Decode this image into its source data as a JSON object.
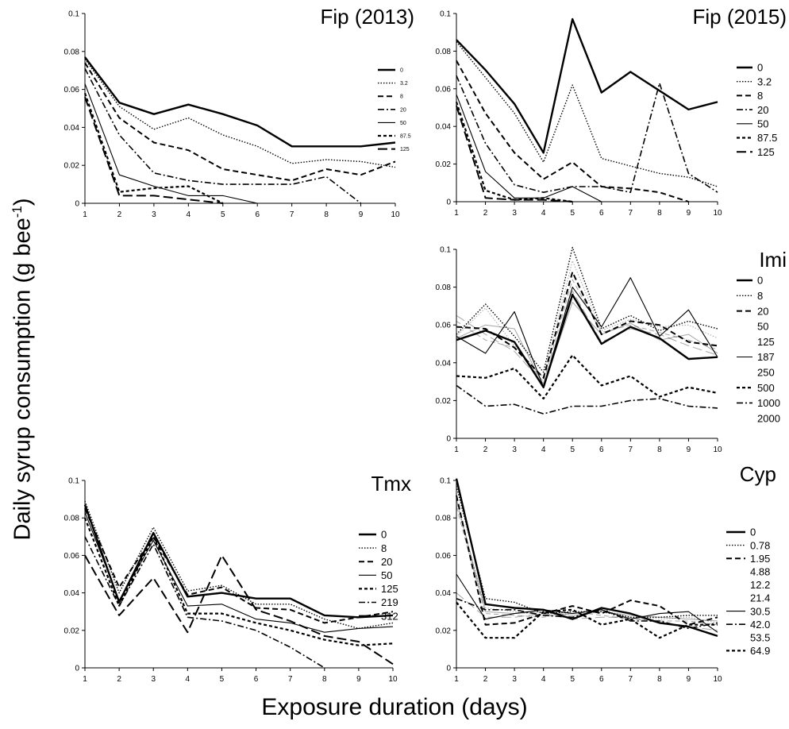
{
  "figure": {
    "ylabel_main": "Daily syrup consumption (g bee",
    "ylabel_sup": "-1",
    "ylabel_tail": ")",
    "xlabel": "Exposure duration (days)"
  },
  "chart_data": [
    {
      "type": "line",
      "title": "Fip (2013)",
      "x": [
        1,
        2,
        3,
        4,
        5,
        6,
        7,
        8,
        9,
        10
      ],
      "ylim": [
        0,
        0.1
      ],
      "yticks": [
        "0",
        "0.02",
        "0.04",
        "0.06",
        "0.08",
        "0.1"
      ],
      "legend_small": true,
      "series": [
        {
          "name": "0",
          "style": "solid-thick",
          "values": [
            0.077,
            0.053,
            0.047,
            0.052,
            0.047,
            0.041,
            0.03,
            0.03,
            0.03,
            0.032
          ]
        },
        {
          "name": "3.2",
          "style": "dotted",
          "values": [
            0.076,
            0.051,
            0.039,
            0.045,
            0.036,
            0.03,
            0.021,
            0.023,
            0.022,
            0.019
          ]
        },
        {
          "name": "8",
          "style": "dashed",
          "values": [
            0.074,
            0.045,
            0.032,
            0.028,
            0.018,
            0.015,
            0.012,
            0.018,
            0.015,
            0.022
          ]
        },
        {
          "name": "20",
          "style": "dashdot",
          "values": [
            0.071,
            0.036,
            0.016,
            0.012,
            0.01,
            0.01,
            0.01,
            0.014,
            0.0,
            null
          ]
        },
        {
          "name": "50",
          "style": "solid-thin",
          "values": [
            0.063,
            0.015,
            0.009,
            0.004,
            0.004,
            0.0,
            null,
            null,
            null,
            null
          ]
        },
        {
          "name": "87.5",
          "style": "dashed-short",
          "values": [
            0.058,
            0.006,
            0.008,
            0.009,
            0.0,
            null,
            null,
            null,
            null,
            null
          ]
        },
        {
          "name": "125",
          "style": "longdash",
          "values": [
            0.056,
            0.004,
            0.004,
            0.002,
            0.0,
            null,
            null,
            null,
            null,
            null
          ]
        }
      ]
    },
    {
      "type": "line",
      "title": "Fip (2015)",
      "x": [
        1,
        2,
        3,
        4,
        5,
        6,
        7,
        8,
        9,
        10
      ],
      "ylim": [
        0,
        0.1
      ],
      "yticks": [
        "0",
        "0.02",
        "0.04",
        "0.06",
        "0.08",
        "0.1"
      ],
      "series": [
        {
          "name": "0",
          "style": "solid-thick",
          "values": [
            0.086,
            0.07,
            0.052,
            0.026,
            0.097,
            0.058,
            0.069,
            0.059,
            0.049,
            0.053
          ]
        },
        {
          "name": "3.2",
          "style": "dotted",
          "values": [
            0.085,
            0.066,
            0.047,
            0.021,
            0.062,
            0.023,
            0.019,
            0.015,
            0.013,
            0.008
          ]
        },
        {
          "name": "8",
          "style": "dashed",
          "values": [
            0.075,
            0.047,
            0.026,
            0.012,
            0.021,
            0.008,
            0.007,
            0.005,
            0.0,
            null
          ]
        },
        {
          "name": "20",
          "style": "dashdot",
          "values": [
            0.067,
            0.031,
            0.009,
            0.005,
            0.008,
            0.008,
            0.005,
            0.063,
            0.015,
            0.005
          ]
        },
        {
          "name": "50",
          "style": "solid-thin",
          "values": [
            0.057,
            0.016,
            0.002,
            0.002,
            0.008,
            0.0,
            0.0,
            null,
            null,
            null
          ]
        },
        {
          "name": "87.5",
          "style": "dashed-short",
          "values": [
            0.053,
            0.006,
            0.001,
            0.002,
            0.0,
            null,
            null,
            null,
            null,
            null
          ]
        },
        {
          "name": "125",
          "style": "longdash",
          "values": [
            0.051,
            0.002,
            0.001,
            0.001,
            0.0,
            null,
            null,
            null,
            null,
            null
          ]
        }
      ]
    },
    {
      "type": "line",
      "title": "Imi",
      "x": [
        1,
        2,
        3,
        4,
        5,
        6,
        7,
        8,
        9,
        10
      ],
      "ylim": [
        0,
        0.1
      ],
      "yticks": [
        "0",
        "0.02",
        "0.04",
        "0.06",
        "0.08",
        "0.1"
      ],
      "legend_unmarked": [
        "50",
        "125",
        "250",
        "2000"
      ],
      "series": [
        {
          "name": "0",
          "style": "solid-thick",
          "values": [
            0.052,
            0.057,
            0.051,
            0.027,
            0.076,
            0.05,
            0.059,
            0.053,
            0.042,
            0.043
          ]
        },
        {
          "name": "8",
          "style": "dotted",
          "values": [
            0.055,
            0.071,
            0.054,
            0.035,
            0.101,
            0.058,
            0.065,
            0.057,
            0.062,
            0.058
          ]
        },
        {
          "name": "20",
          "style": "dashed",
          "values": [
            0.059,
            0.058,
            0.048,
            0.032,
            0.088,
            0.055,
            0.062,
            0.06,
            0.051,
            0.049
          ]
        },
        {
          "name": "50",
          "style": "solid-faint",
          "values": [
            0.053,
            0.06,
            0.058,
            0.028,
            0.072,
            0.055,
            0.061,
            0.052,
            0.055,
            0.045
          ]
        },
        {
          "name": "125",
          "style": "dotted-faint",
          "values": [
            0.054,
            0.069,
            0.049,
            0.032,
            0.094,
            0.057,
            0.063,
            0.059,
            0.06,
            0.053
          ]
        },
        {
          "name": "187",
          "style": "solid-thin",
          "values": [
            0.054,
            0.045,
            0.067,
            0.027,
            0.08,
            0.059,
            0.085,
            0.054,
            0.068,
            0.043
          ]
        },
        {
          "name": "250",
          "style": "dashed-faint",
          "values": [
            0.062,
            0.052,
            0.048,
            0.03,
            0.084,
            0.056,
            0.06,
            0.056,
            0.052,
            0.047
          ]
        },
        {
          "name": "500",
          "style": "dashed-short",
          "values": [
            0.033,
            0.032,
            0.037,
            0.021,
            0.044,
            0.028,
            0.033,
            0.022,
            0.027,
            0.024
          ]
        },
        {
          "name": "1000",
          "style": "dashdot",
          "values": [
            0.028,
            0.017,
            0.018,
            0.013,
            0.017,
            0.017,
            0.02,
            0.021,
            0.017,
            0.016
          ]
        },
        {
          "name": "2000",
          "style": "longdash-faint",
          "values": [
            0.065,
            0.055,
            0.046,
            0.029,
            0.078,
            0.051,
            0.058,
            0.055,
            0.049,
            0.044
          ]
        }
      ]
    },
    {
      "type": "line",
      "title": "Tmx",
      "x": [
        1,
        2,
        3,
        4,
        5,
        6,
        7,
        8,
        9,
        10
      ],
      "ylim": [
        0,
        0.1
      ],
      "yticks": [
        "0",
        "0.02",
        "0.04",
        "0.06",
        "0.08",
        "0.1"
      ],
      "series": [
        {
          "name": "0",
          "style": "solid-thick",
          "values": [
            0.087,
            0.035,
            0.072,
            0.038,
            0.04,
            0.037,
            0.037,
            0.028,
            0.027,
            0.028
          ]
        },
        {
          "name": "8",
          "style": "dotted",
          "values": [
            0.089,
            0.04,
            0.075,
            0.041,
            0.044,
            0.034,
            0.034,
            0.026,
            0.021,
            0.024
          ]
        },
        {
          "name": "20",
          "style": "dashed",
          "values": [
            0.085,
            0.043,
            0.07,
            0.039,
            0.043,
            0.032,
            0.031,
            0.024,
            0.027,
            0.03
          ]
        },
        {
          "name": "50",
          "style": "solid-thin",
          "values": [
            0.083,
            0.036,
            0.068,
            0.033,
            0.034,
            0.026,
            0.024,
            0.019,
            0.021,
            0.022
          ]
        },
        {
          "name": "125",
          "style": "dashed-short",
          "values": [
            0.08,
            0.033,
            0.07,
            0.029,
            0.029,
            0.024,
            0.02,
            0.015,
            0.012,
            0.013
          ]
        },
        {
          "name": "219",
          "style": "dashdot",
          "values": [
            0.07,
            0.033,
            0.066,
            0.027,
            0.025,
            0.02,
            0.011,
            0.0,
            null,
            null
          ]
        },
        {
          "name": "312",
          "style": "longdash",
          "values": [
            0.06,
            0.028,
            0.048,
            0.019,
            0.06,
            0.031,
            0.025,
            0.017,
            0.014,
            0.002
          ]
        }
      ]
    },
    {
      "type": "line",
      "title": "Cyp",
      "x": [
        1,
        2,
        3,
        4,
        5,
        6,
        7,
        8,
        9,
        10
      ],
      "ylim": [
        0,
        0.1
      ],
      "yticks": [
        "0",
        "0.02",
        "0.04",
        "0.06",
        "0.08",
        "0.1"
      ],
      "legend_unmarked": [
        "4.88",
        "12.2",
        "21.4",
        "53.5"
      ],
      "series": [
        {
          "name": "0",
          "style": "solid-thick",
          "values": [
            0.101,
            0.034,
            0.032,
            0.031,
            0.026,
            0.032,
            0.029,
            0.024,
            0.022,
            0.017
          ]
        },
        {
          "name": "0.78",
          "style": "dotted",
          "values": [
            0.097,
            0.037,
            0.035,
            0.029,
            0.03,
            0.03,
            0.027,
            0.027,
            0.028,
            0.028
          ]
        },
        {
          "name": "1.95",
          "style": "dashed",
          "values": [
            0.092,
            0.023,
            0.024,
            0.029,
            0.033,
            0.029,
            0.036,
            0.033,
            0.023,
            0.027
          ]
        },
        {
          "name": "4.88",
          "style": "solid-faint",
          "values": [
            0.09,
            0.03,
            0.029,
            0.03,
            0.028,
            0.03,
            0.028,
            0.027,
            0.026,
            0.025
          ]
        },
        {
          "name": "12.2",
          "style": "dotted-faint",
          "values": [
            0.088,
            0.032,
            0.03,
            0.028,
            0.029,
            0.031,
            0.027,
            0.026,
            0.027,
            0.024
          ]
        },
        {
          "name": "21.4",
          "style": "dashed-faint",
          "values": [
            0.086,
            0.029,
            0.028,
            0.027,
            0.03,
            0.028,
            0.026,
            0.025,
            0.025,
            0.023
          ]
        },
        {
          "name": "30.5",
          "style": "solid-thin",
          "values": [
            0.05,
            0.026,
            0.029,
            0.031,
            0.029,
            0.031,
            0.026,
            0.029,
            0.03,
            0.019
          ]
        },
        {
          "name": "42.0",
          "style": "dashdot",
          "values": [
            0.037,
            0.031,
            0.031,
            0.028,
            0.027,
            0.031,
            0.025,
            0.025,
            0.021,
            0.024
          ]
        },
        {
          "name": "53.5",
          "style": "longdash-faint",
          "values": [
            0.04,
            0.027,
            0.027,
            0.029,
            0.026,
            0.027,
            0.027,
            0.024,
            0.022,
            0.02
          ]
        },
        {
          "name": "64.9",
          "style": "dashed-short",
          "values": [
            0.035,
            0.016,
            0.016,
            0.03,
            0.031,
            0.023,
            0.026,
            0.016,
            0.023,
            0.023
          ]
        }
      ]
    }
  ]
}
